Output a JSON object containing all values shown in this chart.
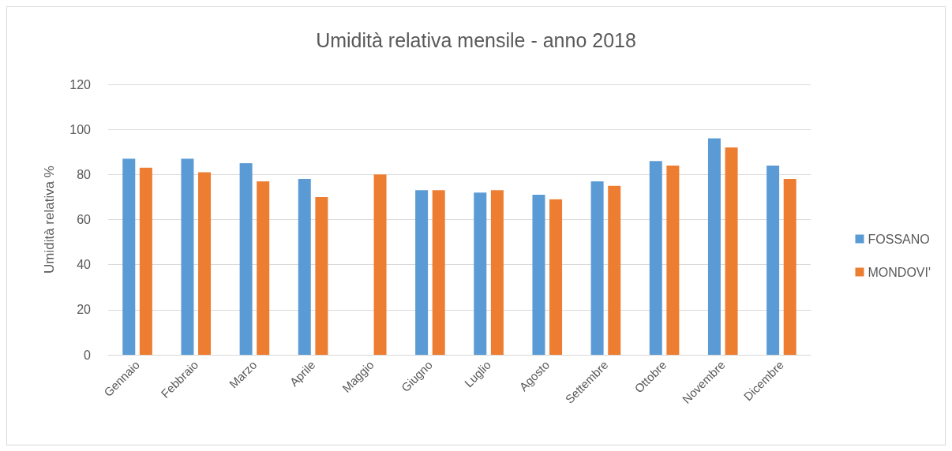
{
  "chart_data": {
    "type": "bar",
    "title": "Umidità relativa mensile - anno 2018",
    "ylabel": "Umidità relativa %",
    "categories": [
      "Gennaio",
      "Febbraio",
      "Marzo",
      "Aprile",
      "Maggio",
      "Giugno",
      "Luglio",
      "Agosto",
      "Settembre",
      "Ottobre",
      "Novembre",
      "Dicembre"
    ],
    "series": [
      {
        "name": "FOSSANO",
        "color": "#5b9bd5",
        "values": [
          87,
          87,
          85,
          78,
          null,
          73,
          72,
          71,
          77,
          86,
          96,
          84
        ]
      },
      {
        "name": "MONDOVI'",
        "color": "#ed7d31",
        "values": [
          83,
          81,
          77,
          70,
          80,
          73,
          73,
          69,
          75,
          84,
          92,
          78
        ]
      }
    ],
    "ylim": [
      0,
      120
    ],
    "yticks": [
      0,
      20,
      40,
      60,
      80,
      100,
      120
    ],
    "grid": "y",
    "legend": "right"
  }
}
